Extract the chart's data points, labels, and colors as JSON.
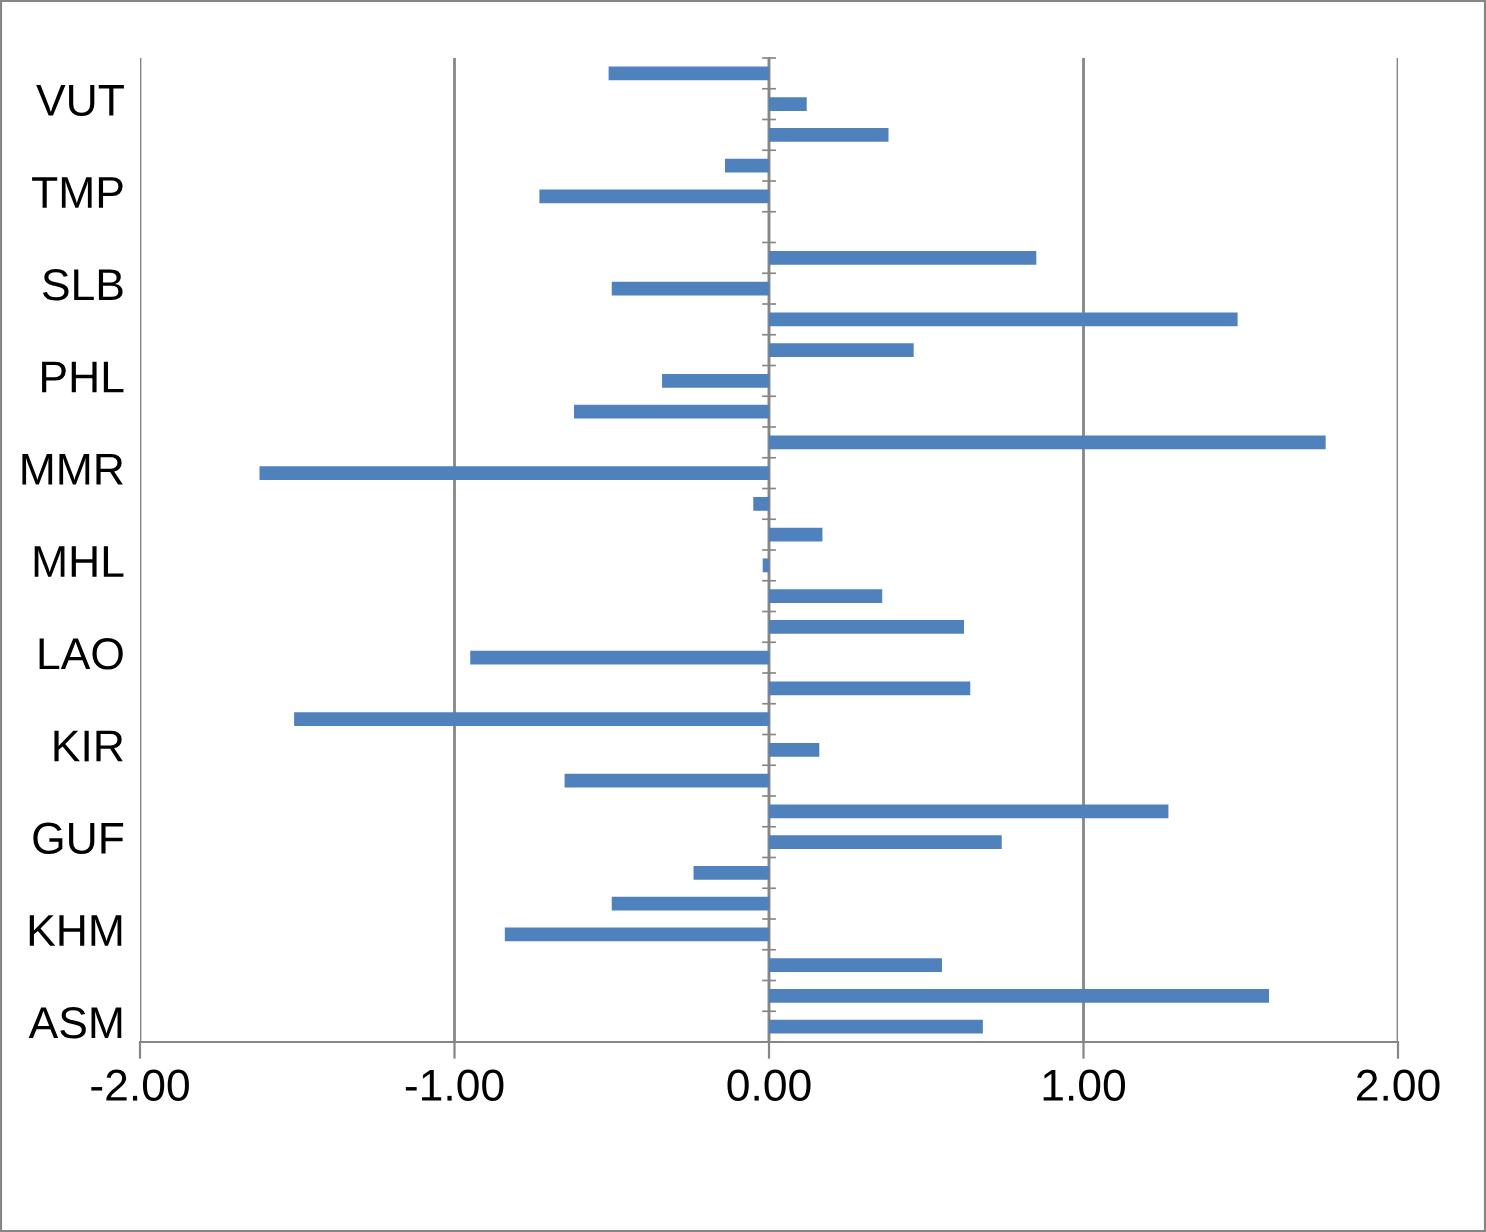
{
  "chart_data": {
    "type": "bar",
    "orientation": "horizontal",
    "color": "#4f81bd",
    "categories": [
      null,
      "VUT",
      null,
      null,
      "TMP",
      null,
      null,
      "SLB",
      null,
      null,
      "PHL",
      null,
      null,
      "MMR",
      null,
      null,
      "MHL",
      null,
      null,
      "LAO",
      null,
      null,
      "KIR",
      null,
      null,
      "GUF",
      null,
      null,
      "KHM",
      null,
      null,
      "ASM"
    ],
    "values": [
      -0.51,
      0.12,
      0.38,
      -0.14,
      -0.73,
      null,
      0.85,
      -0.5,
      1.49,
      0.46,
      -0.34,
      -0.62,
      1.77,
      -1.62,
      -0.05,
      0.17,
      -0.02,
      0.36,
      0.62,
      -0.95,
      0.64,
      -1.51,
      0.16,
      -0.65,
      1.27,
      0.74,
      -0.24,
      -0.5,
      -0.84,
      0.55,
      1.59,
      0.68
    ],
    "xlim": [
      -2,
      2
    ],
    "xticks": [
      {
        "value": -2,
        "label": "-2.00"
      },
      {
        "value": -1,
        "label": "-1.00"
      },
      {
        "value": 0,
        "label": "0.00"
      },
      {
        "value": 1,
        "label": "1.00"
      },
      {
        "value": 2,
        "label": "2.00"
      }
    ],
    "grid": "x"
  }
}
